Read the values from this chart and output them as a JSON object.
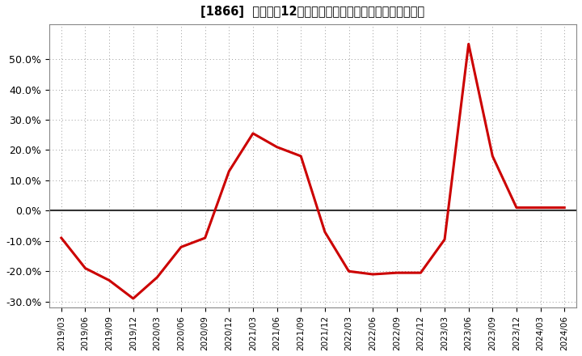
{
  "title": "[1866]  売上高の12か月移動合計の対前年同期増減率の推移",
  "line_color": "#cc0000",
  "background_color": "#ffffff",
  "plot_bg_color": "#ffffff",
  "grid_color": "#999999",
  "zero_line_color": "#333333",
  "ylim": [
    -0.32,
    0.615
  ],
  "yticks": [
    -0.3,
    -0.2,
    -0.1,
    0.0,
    0.1,
    0.2,
    0.3,
    0.4,
    0.5
  ],
  "dates": [
    "2019/03",
    "2019/06",
    "2019/09",
    "2019/12",
    "2020/03",
    "2020/06",
    "2020/09",
    "2020/12",
    "2021/03",
    "2021/06",
    "2021/09",
    "2021/12",
    "2022/03",
    "2022/06",
    "2022/09",
    "2022/12",
    "2023/03",
    "2023/06",
    "2023/09",
    "2023/12",
    "2024/03",
    "2024/06"
  ],
  "values": [
    -0.09,
    -0.19,
    -0.23,
    -0.29,
    -0.22,
    -0.12,
    -0.09,
    0.13,
    0.255,
    0.21,
    0.18,
    -0.07,
    -0.2,
    -0.21,
    -0.205,
    -0.205,
    -0.095,
    0.55,
    0.18,
    0.01,
    0.01,
    0.01
  ]
}
